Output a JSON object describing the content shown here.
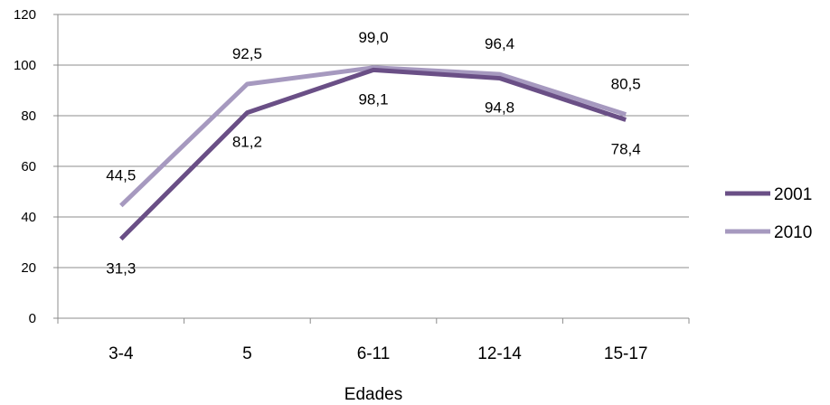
{
  "chart_data": {
    "type": "line",
    "categories": [
      "3-4",
      "5",
      "6-11",
      "12-14",
      "15-17"
    ],
    "series": [
      {
        "name": "2001",
        "values": [
          31.3,
          81.2,
          98.1,
          94.8,
          78.4
        ],
        "labels": [
          "31,3",
          "81,2",
          "98,1",
          "94,8",
          "78,4"
        ],
        "color": "#6a4f86"
      },
      {
        "name": "2010",
        "values": [
          44.5,
          92.5,
          99.0,
          96.4,
          80.5
        ],
        "labels": [
          "44,5",
          "92,5",
          "99,0",
          "96,4",
          "80,5"
        ],
        "color": "#a699bf"
      }
    ],
    "xlabel": "Edades",
    "ylabel": "",
    "ylim": [
      0,
      120
    ],
    "yticks": [
      0,
      20,
      40,
      60,
      80,
      100,
      120
    ],
    "grid": true,
    "legend_position": "right"
  }
}
